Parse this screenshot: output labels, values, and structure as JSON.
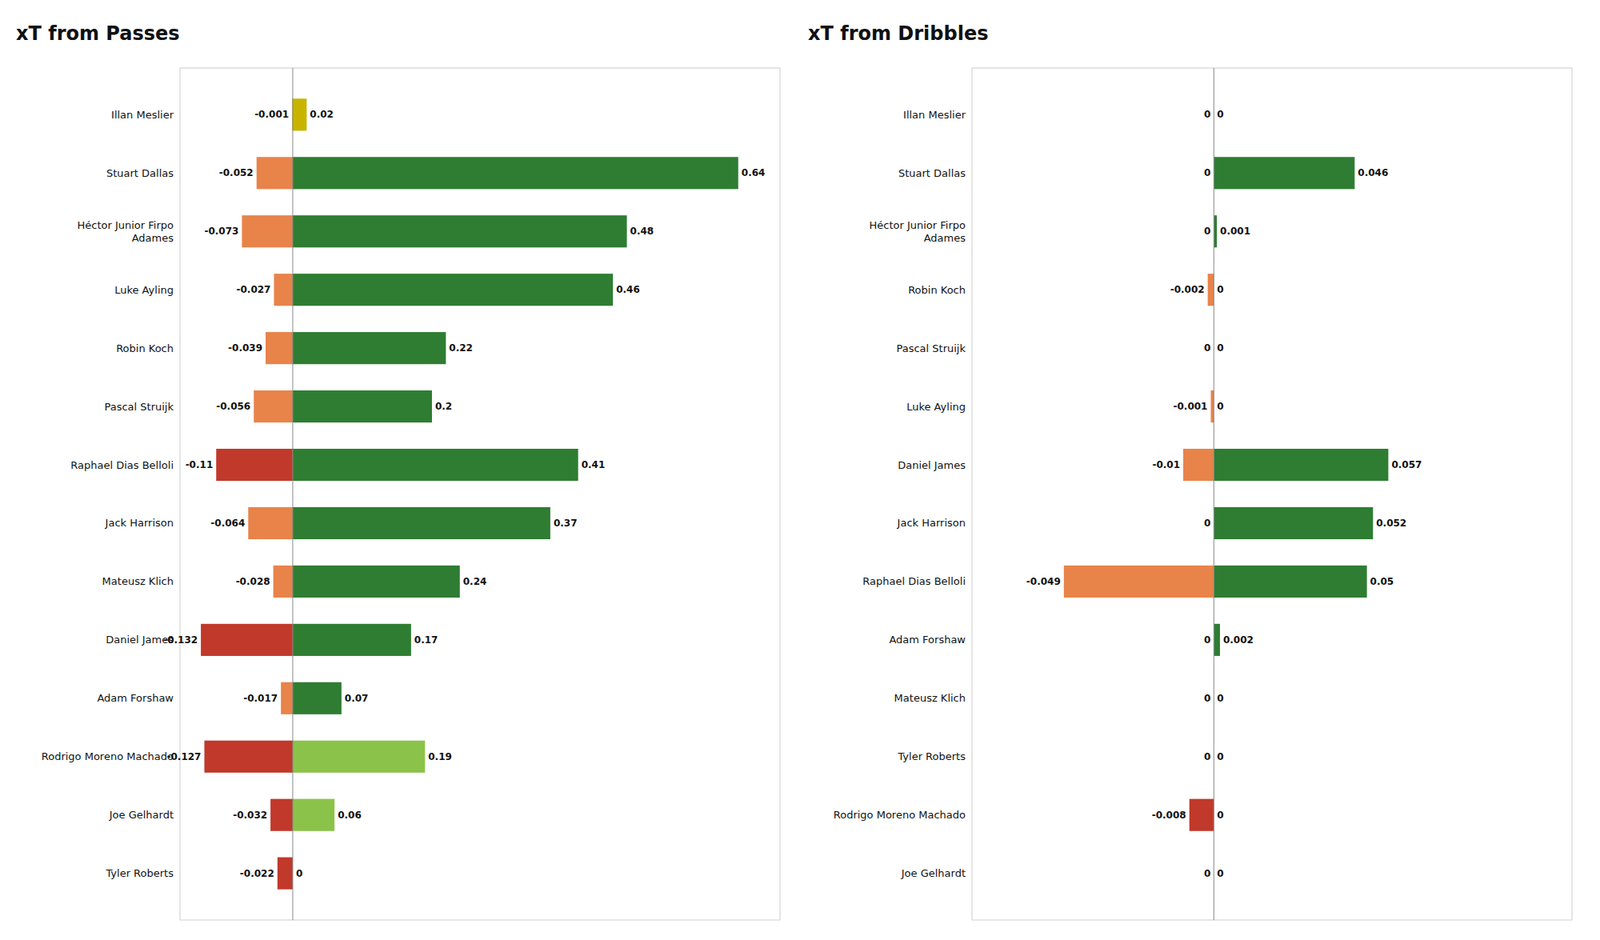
{
  "chart_data": [
    {
      "type": "bar",
      "orientation": "horizontal",
      "title": "xT from Passes",
      "categories": [
        "Illan Meslier",
        "Stuart Dallas",
        "Héctor Junior Firpo\nAdames",
        "Luke Ayling",
        "Robin Koch",
        "Pascal Struijk",
        "Raphael Dias Belloli",
        "Jack Harrison",
        "Mateusz Klich",
        "Daniel James",
        "Adam Forshaw",
        "Rodrigo Moreno Machado",
        "Joe Gelhardt",
        "Tyler Roberts"
      ],
      "series": [
        {
          "values": [
            -0.001,
            -0.052,
            -0.073,
            -0.027,
            -0.039,
            -0.056,
            -0.11,
            -0.064,
            -0.028,
            -0.132,
            -0.017,
            -0.127,
            -0.032,
            -0.022
          ],
          "colors": [
            "#c8b400",
            "#e8834a",
            "#e8834a",
            "#e8834a",
            "#e8834a",
            "#e8834a",
            "#c0392b",
            "#e8834a",
            "#e8834a",
            "#c0392b",
            "#e8834a",
            "#c0392b",
            "#c0392b",
            "#c0392b"
          ]
        },
        {
          "values": [
            0.02,
            0.64,
            0.48,
            0.46,
            0.22,
            0.2,
            0.41,
            0.37,
            0.24,
            0.17,
            0.07,
            0.19,
            0.06,
            0
          ],
          "colors": [
            "#c8b400",
            "#2e7d32",
            "#2e7d32",
            "#2e7d32",
            "#2e7d32",
            "#2e7d32",
            "#2e7d32",
            "#2e7d32",
            "#2e7d32",
            "#2e7d32",
            "#2e7d32",
            "#8bc34a",
            "#8bc34a",
            "#8bc34a"
          ]
        }
      ],
      "xlim": [
        -0.162,
        0.7
      ],
      "data_labels": true,
      "tick_labels": "y"
    },
    {
      "type": "bar",
      "orientation": "horizontal",
      "title": "xT from Dribbles",
      "categories": [
        "Illan Meslier",
        "Stuart Dallas",
        "Héctor Junior Firpo\nAdames",
        "Robin Koch",
        "Pascal Struijk",
        "Luke Ayling",
        "Daniel James",
        "Jack Harrison",
        "Raphael Dias Belloli",
        "Adam Forshaw",
        "Mateusz Klich",
        "Tyler Roberts",
        "Rodrigo Moreno Machado",
        "Joe Gelhardt"
      ],
      "series": [
        {
          "values": [
            0,
            0,
            0,
            -0.002,
            0,
            -0.001,
            -0.01,
            0,
            -0.049,
            0,
            0,
            0,
            -0.008,
            0
          ],
          "colors": [
            "#c8b400",
            "#e8834a",
            "#e8834a",
            "#e8834a",
            "#e8834a",
            "#e8834a",
            "#e8834a",
            "#e8834a",
            "#e8834a",
            "#e8834a",
            "#e8834a",
            "#c0392b",
            "#c0392b",
            "#c0392b"
          ]
        },
        {
          "values": [
            0,
            0.046,
            0.001,
            0,
            0,
            0,
            0.057,
            0.052,
            0.05,
            0.002,
            0,
            0,
            0,
            0
          ],
          "colors": [
            "#c8b400",
            "#2e7d32",
            "#2e7d32",
            "#2e7d32",
            "#2e7d32",
            "#2e7d32",
            "#2e7d32",
            "#2e7d32",
            "#2e7d32",
            "#2e7d32",
            "#2e7d32",
            "#8bc34a",
            "#8bc34a",
            "#8bc34a"
          ]
        }
      ],
      "xlim": [
        -0.079,
        0.117
      ],
      "data_labels": true,
      "tick_labels": "y"
    }
  ]
}
